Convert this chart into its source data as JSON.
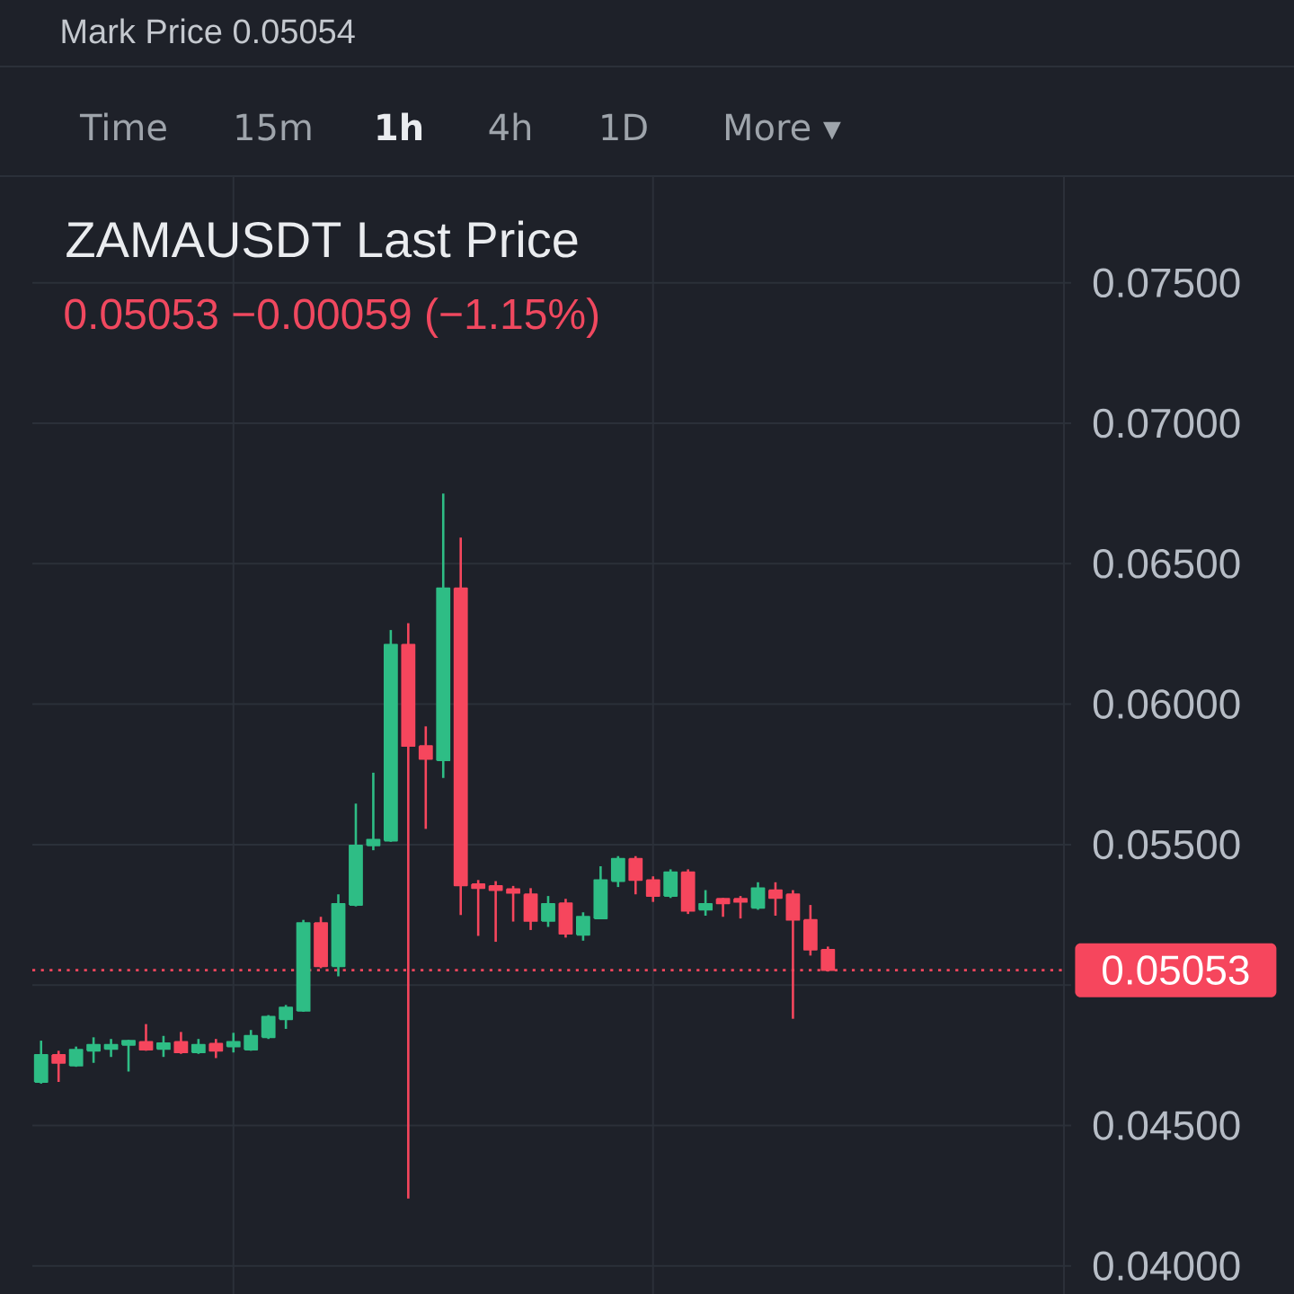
{
  "chart_data": {
    "type": "candlestick",
    "title": "ZAMAUSDT Last Price",
    "subtitle": "0.05053 −0.00059 (−1.15%)",
    "annotations": [
      "Mark Price 0.05054",
      "Time",
      "15m",
      "1h",
      "4h",
      "1D",
      "More ▾"
    ],
    "categories": [
      null,
      null,
      null,
      null,
      null,
      null,
      null,
      null,
      null,
      null,
      null,
      null,
      null,
      null,
      null,
      null,
      null,
      null,
      null,
      null,
      null,
      null,
      null,
      null,
      null,
      null,
      null,
      null,
      null,
      null,
      null,
      null,
      null,
      null,
      null,
      null,
      null,
      null,
      null,
      null,
      null,
      null,
      null,
      null,
      null,
      null,
      null,
      null,
      null,
      null,
      null,
      null,
      null,
      null,
      null,
      null,
      null,
      null,
      null
    ],
    "ohlc": [
      [
        0.04655,
        0.04802,
        0.04649,
        0.04751
      ],
      [
        0.04751,
        0.04766,
        0.04655,
        0.04723
      ],
      [
        0.04713,
        0.04781,
        0.04709,
        0.0477
      ],
      [
        0.04766,
        0.04814,
        0.04723,
        0.04787
      ],
      [
        0.04772,
        0.04808,
        0.04744,
        0.04787
      ],
      [
        0.04787,
        0.04805,
        0.04692,
        0.04802
      ],
      [
        0.04798,
        0.04861,
        0.04766,
        0.0477
      ],
      [
        0.04772,
        0.04819,
        0.04744,
        0.04793
      ],
      [
        0.04798,
        0.04833,
        0.04755,
        0.0476
      ],
      [
        0.0476,
        0.04808,
        0.04755,
        0.04787
      ],
      [
        0.04791,
        0.04808,
        0.0474,
        0.04766
      ],
      [
        0.04781,
        0.0483,
        0.0476,
        0.04798
      ],
      [
        0.0477,
        0.0484,
        0.04766,
        0.04819
      ],
      [
        0.04814,
        0.04893,
        0.04808,
        0.04887
      ],
      [
        0.04878,
        0.04929,
        0.04844,
        0.0492
      ],
      [
        0.04908,
        0.05232,
        0.04905,
        0.05221
      ],
      [
        0.05221,
        0.05243,
        0.0506,
        0.05067
      ],
      [
        0.05067,
        0.05323,
        0.05031,
        0.05289
      ],
      [
        0.05285,
        0.05646,
        0.0528,
        0.05497
      ],
      [
        0.05497,
        0.05756,
        0.0548,
        0.05518
      ],
      [
        0.05514,
        0.06264,
        0.0551,
        0.06212
      ],
      [
        0.06212,
        0.06288,
        0.0424,
        0.05851
      ],
      [
        0.05851,
        0.05921,
        0.05556,
        0.05805
      ],
      [
        0.058,
        0.0675,
        0.05737,
        0.06413
      ],
      [
        0.06413,
        0.06593,
        0.05249,
        0.05355
      ],
      [
        0.05359,
        0.05374,
        0.05175,
        0.05345
      ],
      [
        0.05353,
        0.0537,
        0.05154,
        0.05338
      ],
      [
        0.05342,
        0.05353,
        0.05226,
        0.05328
      ],
      [
        0.05323,
        0.05345,
        0.05196,
        0.05228
      ],
      [
        0.05228,
        0.05317,
        0.05207,
        0.05289
      ],
      [
        0.05291,
        0.05307,
        0.05169,
        0.05183
      ],
      [
        0.05179,
        0.05259,
        0.05158,
        0.05243
      ],
      [
        0.05237,
        0.05423,
        0.05235,
        0.05374
      ],
      [
        0.0537,
        0.05459,
        0.05349,
        0.0545
      ],
      [
        0.0545,
        0.05459,
        0.05323,
        0.05374
      ],
      [
        0.05374,
        0.05387,
        0.05296,
        0.05317
      ],
      [
        0.05317,
        0.05412,
        0.0531,
        0.05402
      ],
      [
        0.05402,
        0.05412,
        0.05253,
        0.05264
      ],
      [
        0.05268,
        0.05338,
        0.05247,
        0.05289
      ],
      [
        0.05307,
        0.0531,
        0.05243,
        0.05291
      ],
      [
        0.05307,
        0.05317,
        0.05237,
        0.05296
      ],
      [
        0.05275,
        0.05366,
        0.05268,
        0.05345
      ],
      [
        0.05338,
        0.05366,
        0.05247,
        0.0531
      ],
      [
        0.05323,
        0.05338,
        0.0488,
        0.05232
      ],
      [
        0.05232,
        0.05285,
        0.05105,
        0.05126
      ],
      [
        0.05126,
        0.05137,
        0.05048,
        0.05053
      ],
      null,
      null,
      null,
      null,
      null,
      null,
      null,
      null,
      null,
      null,
      null,
      null,
      null
    ],
    "colors": [
      "#2ebd85",
      "#f6465d",
      "#2ebd85",
      "#2ebd85",
      "#2ebd85",
      "#2ebd85",
      "#f6465d",
      "#2ebd85",
      "#f6465d",
      "#2ebd85",
      "#f6465d",
      "#2ebd85",
      "#2ebd85",
      "#2ebd85",
      "#2ebd85",
      "#2ebd85",
      "#f6465d",
      "#2ebd85",
      "#2ebd85",
      "#2ebd85",
      "#2ebd85",
      "#f6465d",
      "#f6465d",
      "#2ebd85",
      "#f6465d",
      "#f6465d",
      "#f6465d",
      "#f6465d",
      "#f6465d",
      "#2ebd85",
      "#f6465d",
      "#2ebd85",
      "#2ebd85",
      "#2ebd85",
      "#f6465d",
      "#f6465d",
      "#2ebd85",
      "#f6465d",
      "#2ebd85",
      "#f6465d",
      "#f6465d",
      "#2ebd85",
      "#f6465d",
      "#f6465d",
      "#f6465d",
      "#f6465d",
      null,
      null,
      null,
      null,
      null,
      null,
      null,
      null,
      null,
      null,
      null,
      null,
      null
    ],
    "ylim": [
      0.039,
      0.0788
    ],
    "yticks": [
      {
        "value": 0.04,
        "label": "0.04000"
      },
      {
        "value": 0.045,
        "label": "0.04500"
      },
      {
        "value": 0.05,
        "label": null
      },
      {
        "value": 0.055,
        "label": "0.05500"
      },
      {
        "value": 0.06,
        "label": "0.06000"
      },
      {
        "value": 0.065,
        "label": "0.06500"
      },
      {
        "value": 0.07,
        "label": "0.07000"
      },
      {
        "value": 0.075,
        "label": "0.07500"
      }
    ],
    "ref_lines": [
      {
        "axis": "y",
        "value": 0.05053,
        "label": "0.05053",
        "color": "#f6465d",
        "line_style": "dotted"
      }
    ],
    "grid": true,
    "tick_labels": "y"
  }
}
